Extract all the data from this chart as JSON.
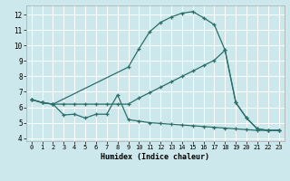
{
  "xlabel": "Humidex (Indice chaleur)",
  "background_color": "#cce8ec",
  "grid_color": "#ffffff",
  "line_color": "#2a6e6a",
  "xlim": [
    -0.5,
    23.5
  ],
  "ylim": [
    3.8,
    12.6
  ],
  "yticks": [
    4,
    5,
    6,
    7,
    8,
    9,
    10,
    11,
    12
  ],
  "xticks": [
    0,
    1,
    2,
    3,
    4,
    5,
    6,
    7,
    8,
    9,
    10,
    11,
    12,
    13,
    14,
    15,
    16,
    17,
    18,
    19,
    20,
    21,
    22,
    23
  ],
  "upper_x": [
    0,
    1,
    2,
    9,
    10,
    11,
    12,
    13,
    14,
    15,
    16,
    17,
    18,
    19,
    20,
    21,
    22,
    23
  ],
  "upper_y": [
    6.5,
    6.3,
    6.2,
    8.6,
    9.8,
    10.9,
    11.5,
    11.85,
    12.1,
    12.2,
    11.8,
    11.35,
    9.7,
    6.3,
    5.3,
    4.6,
    4.5,
    4.5
  ],
  "lower_x": [
    0,
    1,
    2,
    3,
    4,
    5,
    6,
    7,
    8,
    9,
    10,
    11,
    12,
    13,
    14,
    15,
    16,
    17,
    18,
    19,
    20,
    21,
    22,
    23
  ],
  "lower_y": [
    6.5,
    6.3,
    6.2,
    5.5,
    5.55,
    5.3,
    5.55,
    5.55,
    6.8,
    5.2,
    5.1,
    5.0,
    4.95,
    4.9,
    4.85,
    4.8,
    4.75,
    4.7,
    4.65,
    4.6,
    4.55,
    4.5,
    4.5,
    4.5
  ],
  "diag_x": [
    0,
    1,
    2,
    3,
    4,
    5,
    6,
    7,
    8,
    9,
    10,
    11,
    12,
    13,
    14,
    15,
    16,
    17,
    18,
    19,
    20,
    21,
    22,
    23
  ],
  "diag_y": [
    6.5,
    6.3,
    6.2,
    6.2,
    6.2,
    6.2,
    6.2,
    6.2,
    6.2,
    6.2,
    6.6,
    6.95,
    7.3,
    7.65,
    8.0,
    8.35,
    8.7,
    9.05,
    9.7,
    6.3,
    5.3,
    4.6,
    4.5,
    4.5
  ]
}
